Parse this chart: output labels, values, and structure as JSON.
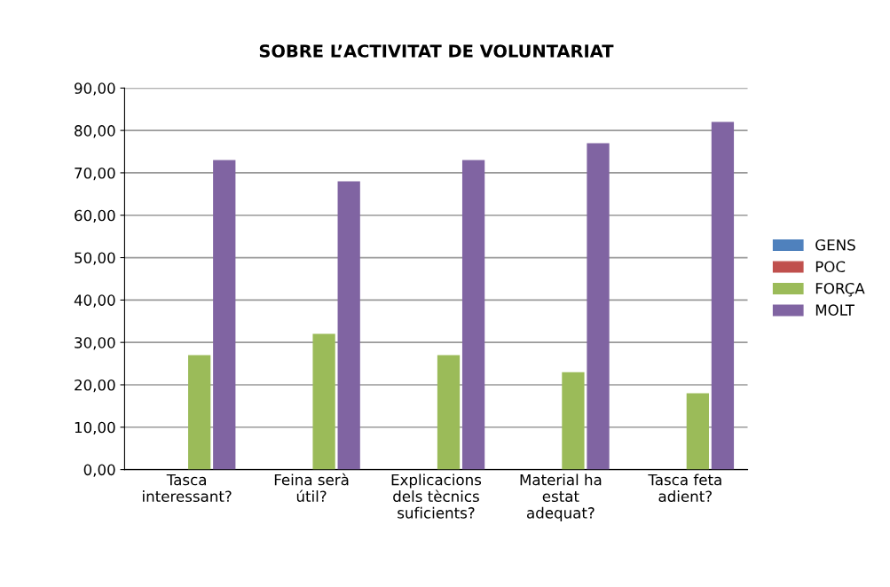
{
  "chart_data": {
    "type": "bar",
    "title": "SOBRE L’ACTIVITAT DE VOLUNTARIAT",
    "categories": [
      "Tasca\ninteressant?",
      "Feina serà\nútil?",
      "Explicacions\ndels tècnics\nsuficients?",
      "Material ha\nestat\nadequat?",
      "Tasca feta\nadient?"
    ],
    "series": [
      {
        "name": "GENS",
        "color": "#4f81bd",
        "values": [
          0,
          0,
          0,
          0,
          0
        ]
      },
      {
        "name": "POC",
        "color": "#c0504d",
        "values": [
          0,
          0,
          0,
          0,
          0
        ]
      },
      {
        "name": "FORÇA",
        "color": "#9bbb59",
        "values": [
          27,
          32,
          27,
          23,
          18
        ]
      },
      {
        "name": "MOLT",
        "color": "#8064a2",
        "values": [
          73,
          68,
          73,
          77,
          82
        ]
      }
    ],
    "ylim": [
      0,
      90
    ],
    "yticks": [
      {
        "value": 0,
        "label": "0,00"
      },
      {
        "value": 10,
        "label": "10,00"
      },
      {
        "value": 20,
        "label": "20,00"
      },
      {
        "value": 30,
        "label": "30,00"
      },
      {
        "value": 40,
        "label": "40,00"
      },
      {
        "value": 50,
        "label": "50,00"
      },
      {
        "value": 60,
        "label": "60,00"
      },
      {
        "value": 70,
        "label": "70,00"
      },
      {
        "value": 80,
        "label": "80,00"
      },
      {
        "value": 90,
        "label": "90,00"
      }
    ],
    "grid": "y",
    "legend": "right"
  }
}
